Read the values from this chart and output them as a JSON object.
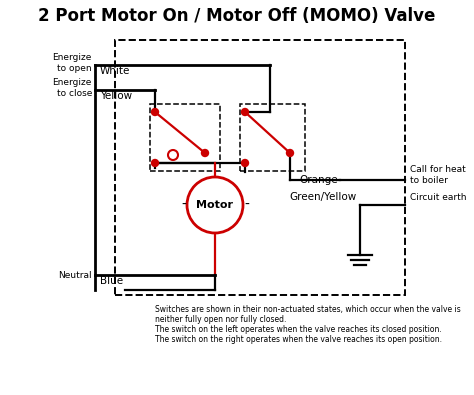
{
  "title": "2 Port Motor On / Motor Off (MOMO) Valve",
  "title_fontsize": 12,
  "bg_color": "#ffffff",
  "line_color": "#000000",
  "red_color": "#cc0000",
  "footnote_lines": [
    "Switches are shown in their non-actuated states, which occur when the valve is",
    "neither fully open nor fully closed.",
    "The switch on the left operates when the valve reaches its closed position.",
    "The switch on the right operates when the valve reaches its open position."
  ],
  "labels": {
    "energize_open": "Energize\nto open",
    "energize_close": "Energize\nto close",
    "neutral": "Neutral",
    "white": "White",
    "yellow": "Yellow",
    "blue": "Blue",
    "orange": "Orange",
    "green_yellow": "Green/Yellow",
    "call_heat": "Call for heat\nto boiler",
    "circuit_earth": "Circuit earth",
    "motor": "Motor"
  }
}
